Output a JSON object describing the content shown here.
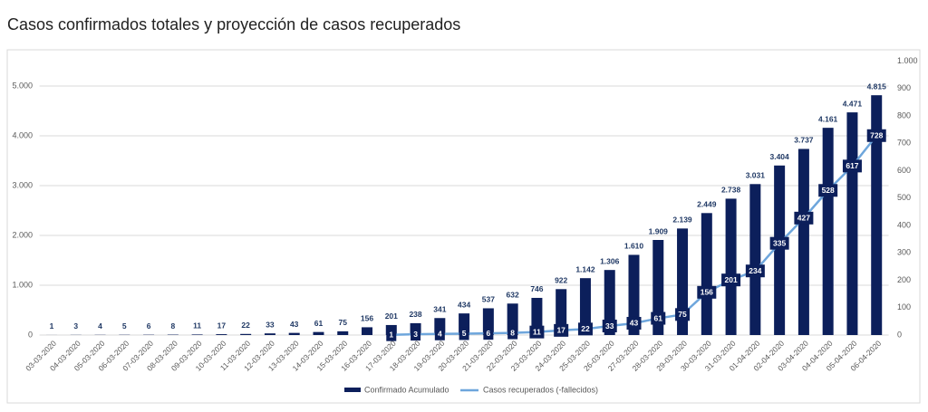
{
  "chart_data": {
    "type": "bar_line",
    "title": "Casos confirmados totales y proyección de casos recuperados",
    "categories": [
      "03-03-2020",
      "04-03-2020",
      "05-03-2020",
      "06-03-2020",
      "07-03-2020",
      "08-03-2020",
      "09-03-2020",
      "10-03-2020",
      "11-03-2020",
      "12-03-2020",
      "13-03-2020",
      "14-03-2020",
      "15-03-2020",
      "16-03-2020",
      "17-03-2020",
      "18-03-2020",
      "19-03-2020",
      "20-03-2020",
      "21-03-2020",
      "22-03-2020",
      "23-03-2020",
      "24-03-2020",
      "25-03-2020",
      "26-03-2020",
      "27-03-2020",
      "28-03-2020",
      "29-03-2020",
      "30-03-2020",
      "31-03-2020",
      "01-04-2020",
      "02-04-2020",
      "03-04-2020",
      "04-04-2020",
      "05-04-2020",
      "06-04-2020"
    ],
    "series": [
      {
        "name": "Confirmado Acumulado",
        "color": "#0c1f5b",
        "axis": "y",
        "values": [
          1,
          3,
          4,
          5,
          6,
          8,
          11,
          17,
          22,
          33,
          43,
          61,
          75,
          156,
          201,
          238,
          341,
          434,
          537,
          632,
          746,
          922,
          1142,
          1306,
          1610,
          1909,
          2139,
          2449,
          2738,
          3031,
          3404,
          3737,
          4161,
          4471,
          4815
        ],
        "value_labels": [
          "1",
          "3",
          "4",
          "5",
          "6",
          "8",
          "11",
          "17",
          "22",
          "33",
          "43",
          "61",
          "75",
          "156",
          "201",
          "238",
          "341",
          "434",
          "537",
          "632",
          "746",
          "922",
          "1.142",
          "1.306",
          "1.610",
          "1.909",
          "2.139",
          "2.449",
          "2.738",
          "3.031",
          "3.404",
          "3.737",
          "4.161",
          "4.471",
          "4.815"
        ]
      },
      {
        "name": "Casos recuperados (-fallecidos)",
        "color": "#6ea6dc",
        "axis": "y2",
        "values": [
          null,
          null,
          null,
          null,
          null,
          null,
          null,
          null,
          null,
          null,
          null,
          null,
          null,
          null,
          1,
          3,
          4,
          5,
          6,
          8,
          11,
          17,
          22,
          33,
          43,
          61,
          75,
          156,
          201,
          234,
          335,
          427,
          528,
          617,
          728
        ]
      }
    ],
    "ylim": [
      0,
      5500
    ],
    "yticks": [
      0,
      {
        "value": 1000,
        "label": "1.000"
      },
      {
        "value": 2000,
        "label": "2.000"
      },
      {
        "value": 3000,
        "label": "3.000"
      },
      {
        "value": 4000,
        "label": "4.000"
      },
      {
        "value": 5000,
        "label": "5.000"
      }
    ],
    "y2lim": [
      0,
      1000
    ],
    "y2ticks": [
      0,
      100,
      200,
      300,
      400,
      500,
      600,
      700,
      800,
      900,
      {
        "value": 1000,
        "label": "1.000"
      }
    ],
    "grid": true
  }
}
